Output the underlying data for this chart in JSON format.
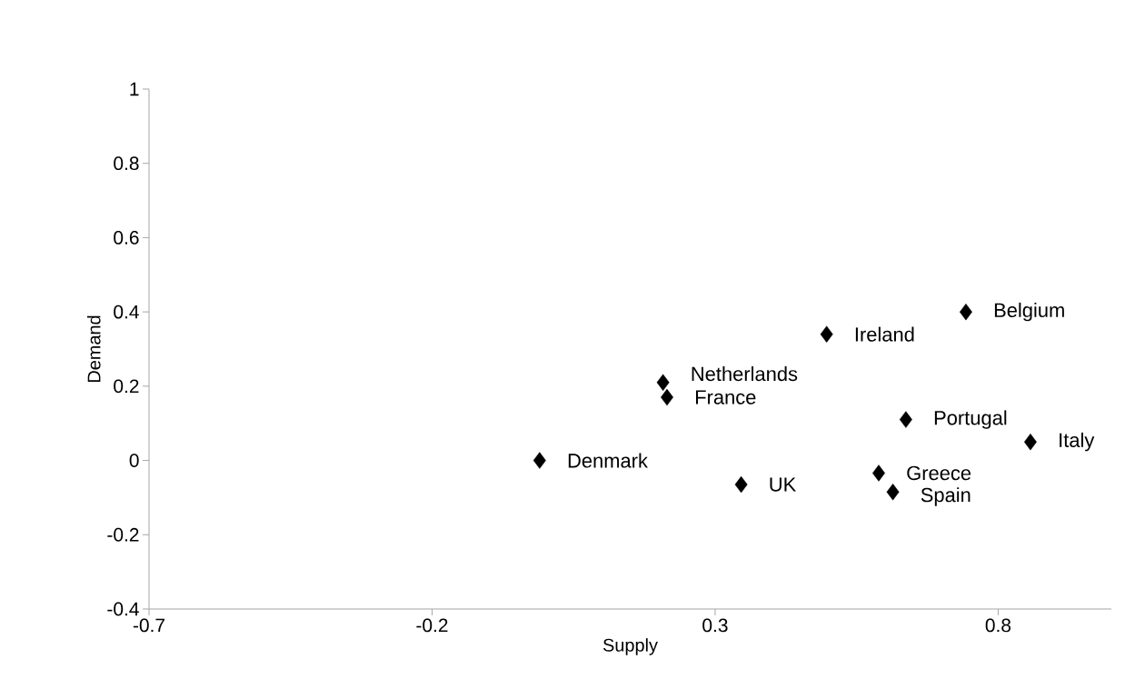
{
  "chart_data": {
    "type": "scatter",
    "xlabel": "Supply",
    "ylabel": "Demand",
    "x": [
      -0.01,
      0.346,
      0.215,
      0.208,
      0.497,
      0.743,
      0.637,
      0.857,
      0.589,
      0.614
    ],
    "series": [
      {
        "color": "#000000",
        "values": [
          0.0,
          -0.065,
          0.17,
          0.21,
          0.34,
          0.4,
          0.11,
          0.05,
          -0.034,
          -0.085
        ]
      }
    ],
    "marker": "diamond",
    "xlim": [
      -0.7,
      1.0
    ],
    "xticks": [
      -0.7,
      -0.2,
      0.3,
      0.8
    ],
    "ylim": [
      -0.4,
      1
    ],
    "yticks": [
      -0.4,
      -0.2,
      0,
      0.2,
      0.4,
      0.6,
      0.8,
      1
    ],
    "grid": false,
    "annotations": [
      {
        "text": "Denmark",
        "x": -0.01,
        "y": 0.0
      },
      {
        "text": "UK",
        "x": 0.346,
        "y": -0.065
      },
      {
        "text": "France",
        "x": 0.215,
        "y": 0.17
      },
      {
        "text": "Netherlands",
        "x": 0.208,
        "y": 0.21
      },
      {
        "text": "Ireland",
        "x": 0.497,
        "y": 0.34
      },
      {
        "text": "Belgium",
        "x": 0.743,
        "y": 0.4
      },
      {
        "text": "Portugal",
        "x": 0.637,
        "y": 0.11
      },
      {
        "text": "Italy",
        "x": 0.857,
        "y": 0.05
      },
      {
        "text": "Greece",
        "x": 0.589,
        "y": -0.034
      },
      {
        "text": "Spain",
        "x": 0.614,
        "y": -0.085
      }
    ]
  }
}
